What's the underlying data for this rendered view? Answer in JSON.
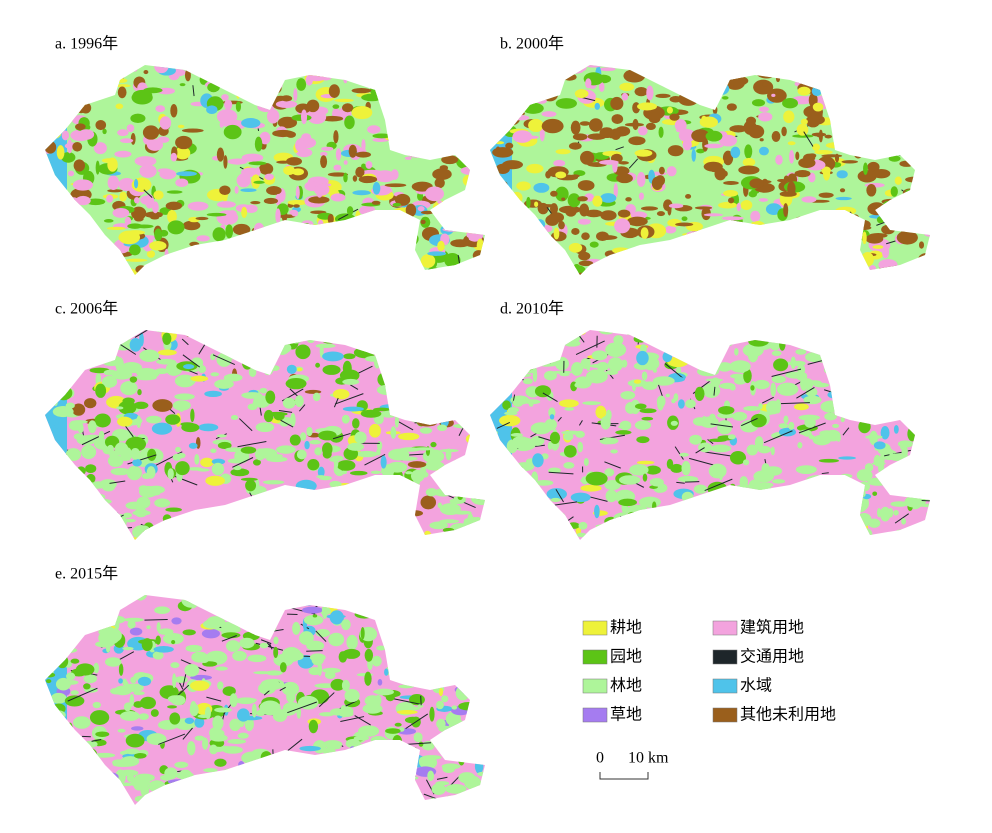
{
  "panels": [
    {
      "label": "a. 1996年"
    },
    {
      "label": "b. 2000年"
    },
    {
      "label": "c. 2006年"
    },
    {
      "label": "d. 2010年"
    },
    {
      "label": "e. 2015年"
    }
  ],
  "legend": {
    "items": [
      {
        "label": "耕地",
        "color": "#eef23a"
      },
      {
        "label": "园地",
        "color": "#5cc416"
      },
      {
        "label": "林地",
        "color": "#aef59a"
      },
      {
        "label": "草地",
        "color": "#a57cf0"
      },
      {
        "label": "建筑用地",
        "color": "#f3a3de"
      },
      {
        "label": "交通用地",
        "color": "#1e262a"
      },
      {
        "label": "水域",
        "color": "#4fc3ea"
      },
      {
        "label": "其他未利用地",
        "color": "#9a5f1c"
      }
    ]
  },
  "scale_bar": {
    "start": "0",
    "label": "10 km"
  }
}
